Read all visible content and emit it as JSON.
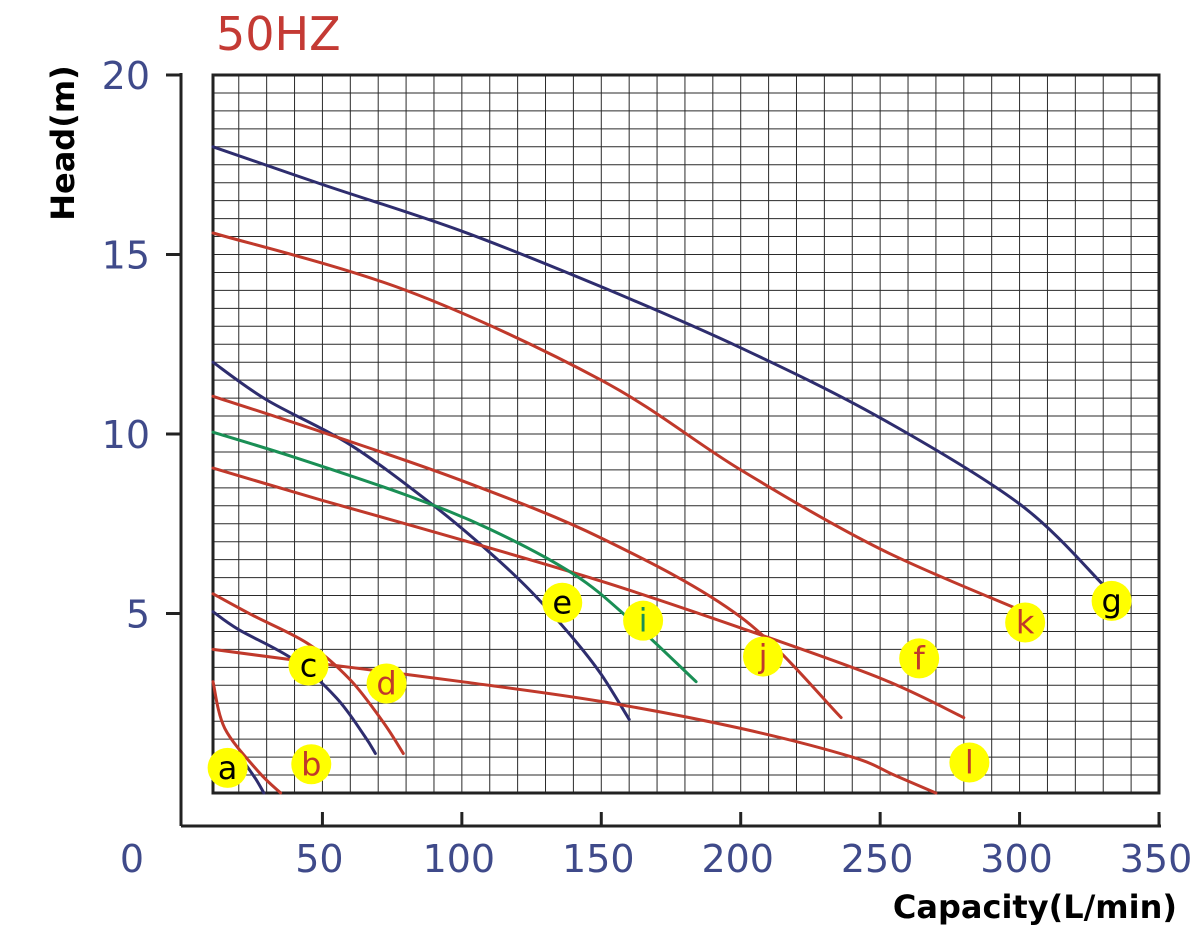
{
  "chart_data": {
    "type": "line",
    "frequency_label": "50HZ",
    "xlabel": "Capacity(L/min)",
    "ylabel": "Head(m)",
    "xlim": [
      0,
      350
    ],
    "ylim": [
      0,
      20
    ],
    "x_ticks": [
      "0",
      "50",
      "100",
      "150",
      "200",
      "250",
      "300",
      "350"
    ],
    "x_tick_values": [
      0,
      50,
      100,
      150,
      200,
      250,
      300,
      350
    ],
    "y_ticks": [
      "5",
      "10",
      "15",
      "20"
    ],
    "y_tick_values": [
      5,
      10,
      15,
      20
    ],
    "grid": true,
    "colors": {
      "navy": "#2e2d6e",
      "red": "#c0392b",
      "green": "#1a8f55",
      "badge": "#ffff00",
      "tick": "#3f4a8a",
      "freq": "#c43a34"
    },
    "series": [
      {
        "name": "a",
        "color": "#c0392b",
        "x": [
          0,
          15,
          27,
          35
        ],
        "y": [
          3.1,
          1.8,
          0.6,
          0.0
        ]
      },
      {
        "name": "b",
        "color": "#2e2d6e",
        "x": [
          22,
          26,
          29
        ],
        "y": [
          0.85,
          0.4,
          0.0
        ]
      },
      {
        "name": "c",
        "color": "#2e2d6e",
        "x": [
          0,
          20,
          40,
          55,
          65,
          69
        ],
        "y": [
          5.05,
          4.55,
          3.7,
          2.65,
          1.6,
          1.1
        ]
      },
      {
        "name": "d",
        "color": "#c0392b",
        "x": [
          0,
          25,
          45,
          60,
          72,
          79
        ],
        "y": [
          5.55,
          4.95,
          4.15,
          3.15,
          1.95,
          1.1
        ]
      },
      {
        "name": "e",
        "color": "#2e2d6e",
        "x": [
          0,
          30,
          60,
          90,
          110,
          125,
          140,
          150,
          160
        ],
        "y": [
          12.0,
          10.95,
          9.7,
          8.0,
          6.7,
          5.6,
          4.3,
          3.3,
          2.05
        ]
      },
      {
        "name": "f",
        "color": "#c0392b",
        "x": [
          0,
          50,
          100,
          150,
          200,
          250,
          280
        ],
        "y": [
          9.05,
          8.15,
          7.05,
          5.9,
          4.6,
          3.2,
          2.1
        ]
      },
      {
        "name": "g",
        "color": "#2e2d6e",
        "x": [
          0,
          50,
          100,
          150,
          200,
          250,
          300,
          330
        ],
        "y": [
          18.0,
          16.95,
          15.65,
          14.1,
          12.4,
          10.45,
          8.05,
          5.8
        ]
      },
      {
        "name": "i",
        "color": "#1a8f55",
        "x": [
          0,
          40,
          80,
          110,
          140,
          160,
          184
        ],
        "y": [
          10.05,
          9.35,
          8.3,
          7.35,
          6.1,
          4.85,
          3.1
        ]
      },
      {
        "name": "j",
        "color": "#c0392b",
        "x": [
          0,
          50,
          100,
          150,
          200,
          236
        ],
        "y": [
          11.05,
          10.05,
          8.7,
          7.1,
          4.9,
          2.1
        ]
      },
      {
        "name": "k",
        "color": "#c0392b",
        "x": [
          0,
          80,
          150,
          200,
          250,
          300
        ],
        "y": [
          15.6,
          14.0,
          11.5,
          9.0,
          6.8,
          5.1
        ]
      },
      {
        "name": "l",
        "color": "#c0392b",
        "x": [
          0,
          50,
          100,
          150,
          200,
          240,
          255,
          270
        ],
        "y": [
          4.0,
          3.6,
          3.1,
          2.55,
          1.8,
          1.0,
          0.5,
          0.0
        ]
      }
    ],
    "curve_labels": [
      {
        "text": "a",
        "x": 16,
        "y": 0.7,
        "color": "#000000"
      },
      {
        "text": "b",
        "x": 46,
        "y": 0.8,
        "color": "#c0392b"
      },
      {
        "text": "c",
        "x": 45,
        "y": 3.55,
        "color": "#000000"
      },
      {
        "text": "d",
        "x": 73,
        "y": 3.05,
        "color": "#c0392b"
      },
      {
        "text": "e",
        "x": 136,
        "y": 5.3,
        "color": "#000000"
      },
      {
        "text": "i",
        "x": 165,
        "y": 4.8,
        "color": "#1a8f55"
      },
      {
        "text": "j",
        "x": 208,
        "y": 3.8,
        "color": "#c0392b"
      },
      {
        "text": "f",
        "x": 264,
        "y": 3.75,
        "color": "#c0392b"
      },
      {
        "text": "k",
        "x": 302,
        "y": 4.75,
        "color": "#c0392b"
      },
      {
        "text": "g",
        "x": 333,
        "y": 5.35,
        "color": "#000000"
      },
      {
        "text": "l",
        "x": 282,
        "y": 0.85,
        "color": "#c0392b"
      }
    ]
  }
}
